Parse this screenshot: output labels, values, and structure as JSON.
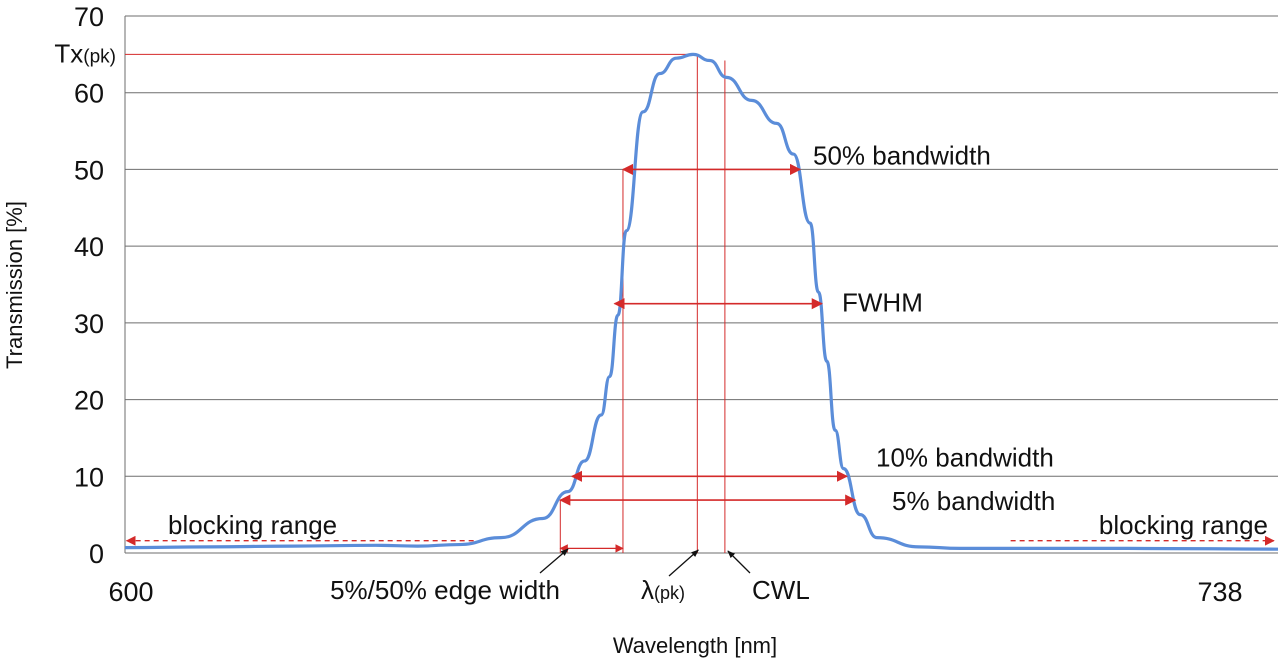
{
  "chart_data": {
    "type": "line",
    "xlabel": "Wavelength [nm]",
    "ylabel": "Transmission [%]",
    "xlim": [
      600,
      738
    ],
    "ylim": [
      0,
      70
    ],
    "y_ticks": [
      0,
      10,
      20,
      30,
      40,
      50,
      60,
      70
    ],
    "x_tick_labels": [
      {
        "value": 600,
        "label": "600"
      },
      {
        "value": 738,
        "label": "738"
      }
    ],
    "grid": "horizontal",
    "series": [
      {
        "color": "#5b8dd9",
        "x": [
          600,
          610,
          620,
          630,
          635,
          640,
          645,
          650,
          653,
          655,
          657,
          658,
          659,
          660,
          662,
          664,
          666,
          668,
          670,
          672,
          675,
          678,
          680,
          682,
          683,
          684,
          685,
          686,
          688,
          690,
          695,
          700,
          705,
          710,
          715,
          720,
          730,
          738
        ],
        "y": [
          0.7,
          0.8,
          0.9,
          1.0,
          0.9,
          1.1,
          2.0,
          4.5,
          8.0,
          12.0,
          18.0,
          23.0,
          31.0,
          42.0,
          57.5,
          62.5,
          64.5,
          65.0,
          64.2,
          62.0,
          59.0,
          56.0,
          52.0,
          43.0,
          34.0,
          25.0,
          16.0,
          11.0,
          5.0,
          2.0,
          0.8,
          0.6,
          0.6,
          0.6,
          0.6,
          0.6,
          0.55,
          0.5
        ]
      }
    ],
    "peak_label": "Tx(pk)",
    "peak_value": 65,
    "accent_color": "#d42a2a",
    "markers": {
      "lambda_pk": 668.5,
      "cwl": 671.8,
      "edge_5_left": 652.1,
      "edge_50_left": 659.6
    },
    "bandwidths": [
      {
        "label": "50% bandwidth",
        "level": 50,
        "from": 659.6,
        "to": 680.8
      },
      {
        "label": "FWHM",
        "level": 32.5,
        "from": 658.6,
        "to": 683.4
      },
      {
        "label": "10% bandwidth",
        "level": 10,
        "from": 653.5,
        "to": 686.4
      },
      {
        "label": "5% bandwidth",
        "level": 6.9,
        "from": 652.1,
        "to": 687.4
      }
    ],
    "blocking": [
      {
        "label": "blocking range",
        "from": 600.2,
        "to": 642
      },
      {
        "label": "blocking range",
        "from": 706,
        "to": 737.5
      }
    ],
    "annotations": {
      "edge_width_label": "5%/50% edge width",
      "lambda_pk_label": "λ(pk)",
      "cwl_label": "CWL"
    }
  }
}
